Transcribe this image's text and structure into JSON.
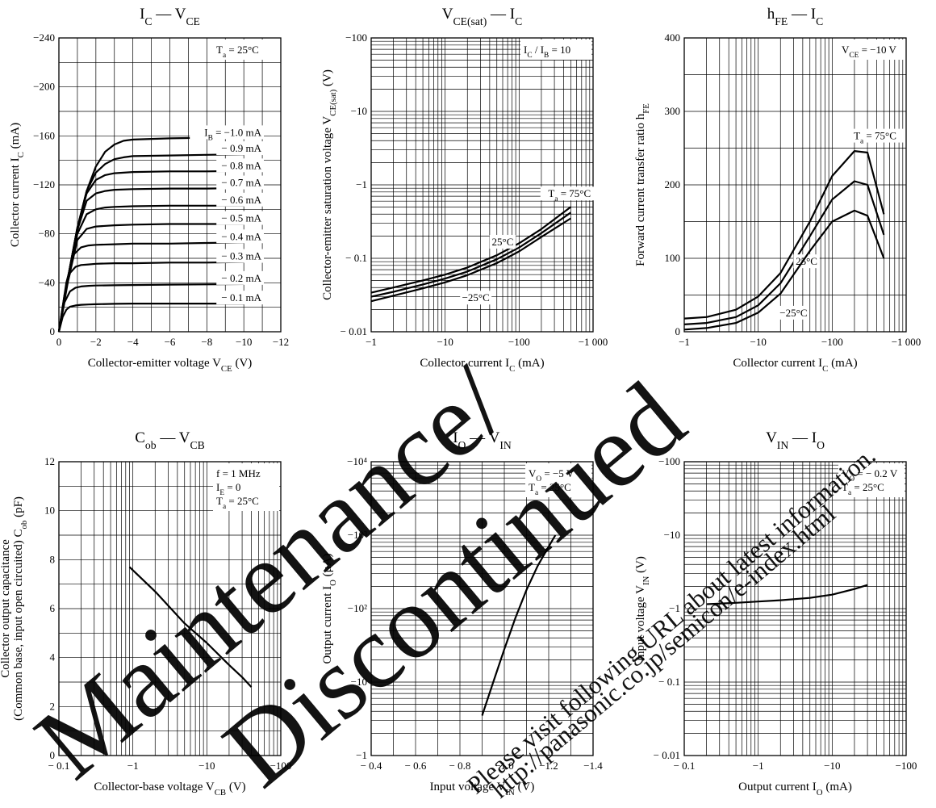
{
  "chart_data": [
    {
      "type": "line",
      "title": "I_C — V_CE",
      "xlabel": "Collector-emitter voltage V_CE (V)",
      "ylabel": "Collector current I_C (mA)",
      "x_scale": "linear",
      "y_scale": "linear",
      "xlim": [
        0,
        -12
      ],
      "ylim": [
        0,
        -240
      ],
      "x_ticks": [
        "0",
        "−2",
        "−4",
        "−6",
        "−8",
        "−10",
        "−12"
      ],
      "y_ticks": [
        "0",
        "−40",
        "−80",
        "−120",
        "−160",
        "−200",
        "−240"
      ],
      "grid": true,
      "conditions": [
        "T_a = 25°C"
      ],
      "series": [
        {
          "name": "I_B = −1.0 mA",
          "label": "I_B = −1.0 mA",
          "label_at": [
            -10,
            -158
          ],
          "x": [
            0,
            -0.5,
            -1,
            -1.5,
            -2,
            -2.5,
            -3,
            -3.5,
            -4,
            -6,
            -8,
            -10
          ],
          "y": [
            0,
            -45,
            -85,
            -115,
            -135,
            -147,
            -153,
            -156,
            -157,
            -158,
            -158.5,
            -159
          ]
        },
        {
          "name": "− 0.9 mA",
          "label": "− 0.9 mA",
          "label_at": [
            -10,
            -145
          ],
          "x": [
            0,
            -0.5,
            -1,
            -1.5,
            -2,
            -2.5,
            -3,
            -3.5,
            -4,
            -6,
            -8,
            -10
          ],
          "y": [
            0,
            -45,
            -85,
            -115,
            -130,
            -137,
            -141,
            -142.5,
            -143.5,
            -144,
            -144.5,
            -145
          ]
        },
        {
          "name": "− 0.8 mA",
          "label": "− 0.8 mA",
          "label_at": [
            -10,
            -131
          ],
          "x": [
            0,
            -0.5,
            -1,
            -1.5,
            -2,
            -2.5,
            -3,
            -4,
            -6,
            -8,
            -10
          ],
          "y": [
            0,
            -45,
            -85,
            -113,
            -124,
            -128,
            -129.5,
            -130.5,
            -131,
            -131,
            -131.5
          ]
        },
        {
          "name": "− 0.7 mA",
          "label": "− 0.7 mA",
          "label_at": [
            -10,
            -117
          ],
          "x": [
            0,
            -0.5,
            -1,
            -1.5,
            -2,
            -2.5,
            -3,
            -4,
            -6,
            -8,
            -10
          ],
          "y": [
            0,
            -45,
            -83,
            -107,
            -113,
            -115,
            -116,
            -116.5,
            -117,
            -117,
            -117.5
          ]
        },
        {
          "name": "− 0.6 mA",
          "label": "− 0.6 mA",
          "label_at": [
            -10,
            -103
          ],
          "x": [
            0,
            -0.5,
            -1,
            -1.5,
            -2,
            -2.5,
            -3,
            -4,
            -6,
            -8,
            -10
          ],
          "y": [
            0,
            -44,
            -80,
            -96,
            -100,
            -101.5,
            -102,
            -102.5,
            -103,
            -103,
            -103
          ]
        },
        {
          "name": "− 0.5 mA",
          "label": "− 0.5 mA",
          "label_at": [
            -10,
            -88
          ],
          "x": [
            0,
            -0.5,
            -1,
            -1.5,
            -2,
            -3,
            -4,
            -6,
            -8,
            -10
          ],
          "y": [
            0,
            -42,
            -75,
            -84,
            -86,
            -87,
            -87.5,
            -88,
            -88,
            -88
          ]
        },
        {
          "name": "− 0.4 mA",
          "label": "− 0.4 mA",
          "label_at": [
            -10,
            -73
          ],
          "x": [
            0,
            -0.4,
            -0.8,
            -1.2,
            -1.6,
            -2,
            -3,
            -4,
            -6,
            -8,
            -10
          ],
          "y": [
            0,
            -40,
            -63,
            -69,
            -70.5,
            -71,
            -71.5,
            -72,
            -72,
            -72.5,
            -73
          ]
        },
        {
          "name": "− 0.3 mA",
          "label": "− 0.3 mA",
          "label_at": [
            -10,
            -57
          ],
          "x": [
            0,
            -0.3,
            -0.6,
            -0.9,
            -1.2,
            -1.6,
            -2,
            -3,
            -4,
            -6,
            -8,
            -10
          ],
          "y": [
            0,
            -30,
            -48,
            -53,
            -54.5,
            -55,
            -55.5,
            -56,
            -56,
            -56.5,
            -56.5,
            -57
          ]
        },
        {
          "name": "− 0.2 mA",
          "label": "− 0.2 mA",
          "label_at": [
            -10,
            -39
          ],
          "x": [
            0,
            -0.3,
            -0.6,
            -0.9,
            -1.2,
            -1.6,
            -2,
            -3,
            -4,
            -6,
            -8,
            -10
          ],
          "y": [
            0,
            -24,
            -33,
            -36,
            -37,
            -37.5,
            -37.8,
            -38,
            -38.2,
            -38.5,
            -38.7,
            -39
          ]
        },
        {
          "name": "− 0.1 mA",
          "label": "− 0.1 mA",
          "label_at": [
            -10,
            -23
          ],
          "x": [
            0,
            -0.2,
            -0.4,
            -0.6,
            -0.9,
            -1.2,
            -1.6,
            -2,
            -3,
            -4,
            -6,
            -8,
            -10
          ],
          "y": [
            0,
            -12,
            -18,
            -20.5,
            -21.5,
            -22,
            -22.3,
            -22.5,
            -22.8,
            -23,
            -23,
            -23,
            -23
          ]
        }
      ]
    },
    {
      "type": "line",
      "title": "V_CE(sat) — I_C",
      "xlabel": "Collector current I_C (mA)",
      "ylabel": "Collector-emitter saturation voltage V_CE(sat) (V)",
      "x_scale": "log",
      "y_scale": "log",
      "xlim": [
        1,
        1000
      ],
      "ylim": [
        0.01,
        100
      ],
      "x_ticks": [
        "−1",
        "−10",
        "−100",
        "−1 000"
      ],
      "y_ticks": [
        "− 0.01",
        "− 0.1",
        "−1",
        "−10",
        "−100"
      ],
      "grid": true,
      "conditions": [
        "I_C / I_B = 10"
      ],
      "series": [
        {
          "name": "T_a = 75°C",
          "label": "T_a = 75°C",
          "label_at": [
            480,
            0.68
          ],
          "x": [
            1,
            2,
            5,
            10,
            20,
            50,
            100,
            200,
            500
          ],
          "y": [
            0.034,
            0.04,
            0.05,
            0.06,
            0.075,
            0.11,
            0.16,
            0.25,
            0.5
          ]
        },
        {
          "name": "25°C",
          "label": "25°C",
          "label_at": [
            60,
            0.15
          ],
          "x": [
            1,
            2,
            5,
            10,
            20,
            50,
            100,
            200,
            500
          ],
          "y": [
            0.03,
            0.035,
            0.044,
            0.053,
            0.066,
            0.097,
            0.14,
            0.22,
            0.42
          ]
        },
        {
          "name": "−25°C",
          "label": "−25°C",
          "label_at": [
            26,
            0.026
          ],
          "x": [
            1,
            2,
            5,
            10,
            20,
            50,
            100,
            200,
            500
          ],
          "y": [
            0.026,
            0.031,
            0.039,
            0.047,
            0.059,
            0.086,
            0.124,
            0.195,
            0.35
          ]
        }
      ]
    },
    {
      "type": "line",
      "title": "h_FE — I_C",
      "xlabel": "Collector current I_C (mA)",
      "ylabel": "Forward current transfer ratio h_FE",
      "x_scale": "log",
      "y_scale": "linear",
      "xlim": [
        1,
        1000
      ],
      "ylim": [
        0,
        400
      ],
      "x_ticks": [
        "−1",
        "−10",
        "−100",
        "−1 000"
      ],
      "y_ticks": [
        "0",
        "100",
        "200",
        "300",
        "400"
      ],
      "grid": true,
      "conditions": [
        "V_CE = −10 V"
      ],
      "series": [
        {
          "name": "T_a = 75°C",
          "label": "T_a = 75°C",
          "label_at": [
            380,
            262
          ],
          "x": [
            1,
            2,
            5,
            10,
            20,
            50,
            100,
            200,
            300,
            500
          ],
          "y": [
            18,
            20,
            30,
            48,
            80,
            150,
            212,
            246,
            244,
            160
          ]
        },
        {
          "name": "25°C",
          "label": "25°C",
          "label_at": [
            45,
            91
          ],
          "x": [
            1,
            2,
            5,
            10,
            20,
            50,
            100,
            200,
            300,
            500
          ],
          "y": [
            10,
            12,
            20,
            36,
            66,
            130,
            180,
            205,
            200,
            132
          ]
        },
        {
          "name": "−25°C",
          "label": "−25°C",
          "label_at": [
            30,
            21
          ],
          "x": [
            1,
            2,
            5,
            10,
            20,
            50,
            100,
            200,
            300,
            500
          ],
          "y": [
            3,
            5,
            12,
            26,
            52,
            110,
            150,
            165,
            158,
            100
          ]
        }
      ]
    },
    {
      "type": "line",
      "title": "C_ob — V_CB",
      "xlabel": "Collector-base voltage V_CB (V)",
      "ylabel": "Collector output capacitance (Common base, input open circuited) C_ob (pF)",
      "x_scale": "log",
      "y_scale": "linear",
      "xlim": [
        0.1,
        100
      ],
      "ylim": [
        0,
        12
      ],
      "x_ticks": [
        "− 0.1",
        "−1",
        "−10",
        "−100"
      ],
      "y_ticks": [
        "0",
        "2",
        "4",
        "6",
        "8",
        "10",
        "12"
      ],
      "grid": true,
      "conditions": [
        "f = 1 MHz",
        "I_E = 0",
        "T_a = 25°C"
      ],
      "series": [
        {
          "name": "C_ob",
          "x": [
            0.9,
            2,
            5,
            10,
            20,
            30,
            40
          ],
          "y": [
            7.7,
            6.7,
            5.4,
            4.6,
            3.7,
            3.2,
            2.8
          ]
        }
      ]
    },
    {
      "type": "line",
      "title": "I_O — V_IN",
      "xlabel": "Input voltage V_IN (V)",
      "ylabel": "Output current I_O (μA)",
      "x_scale": "linear",
      "y_scale": "log",
      "xlim": [
        -0.4,
        -1.4
      ],
      "ylim": [
        1,
        10000
      ],
      "x_ticks": [
        "− 0.4",
        "− 0.6",
        "− 0.8",
        "−1.0",
        "−1.2",
        "−1.4"
      ],
      "y_ticks": [
        "−1",
        "−10",
        "−10²",
        "−10³",
        "−10⁴"
      ],
      "grid": true,
      "conditions": [
        "V_O = −5 V",
        "T_a = 25°C"
      ],
      "series": [
        {
          "name": "I_O",
          "x": [
            -0.9,
            -0.95,
            -1.0,
            -1.05,
            -1.1,
            -1.15,
            -1.2,
            -1.23
          ],
          "y": [
            3.5,
            10,
            28,
            75,
            180,
            380,
            700,
            1000
          ]
        }
      ]
    },
    {
      "type": "line",
      "title": "V_IN — I_O",
      "xlabel": "Output current I_O (mA)",
      "ylabel": "Input voltage V_IN (V)",
      "x_scale": "log",
      "y_scale": "log",
      "xlim": [
        0.1,
        100
      ],
      "ylim": [
        0.01,
        100
      ],
      "x_ticks": [
        "− 0.1",
        "−1",
        "−10",
        "−100"
      ],
      "y_ticks": [
        "− 0.01",
        "− 0.1",
        "−1",
        "−10",
        "−100"
      ],
      "grid": true,
      "conditions": [
        "V_O = − 0.2 V",
        "T_a = 25°C"
      ],
      "series": [
        {
          "name": "V_IN",
          "x": [
            0.2,
            0.5,
            1,
            2,
            5,
            10,
            20,
            30
          ],
          "y": [
            1.15,
            1.2,
            1.25,
            1.3,
            1.4,
            1.55,
            1.85,
            2.1
          ]
        }
      ]
    }
  ],
  "watermarks": [
    {
      "text": "Maintenance/",
      "color": "#f2405f"
    },
    {
      "text": "Discontinued",
      "color": "#f2405f"
    },
    {
      "text": "Please visit following URL about latest information.",
      "color": "#f2405f"
    },
    {
      "text": "http://panasonic.co.jp/semicon/e-index.html",
      "color": "#f2405f"
    }
  ]
}
